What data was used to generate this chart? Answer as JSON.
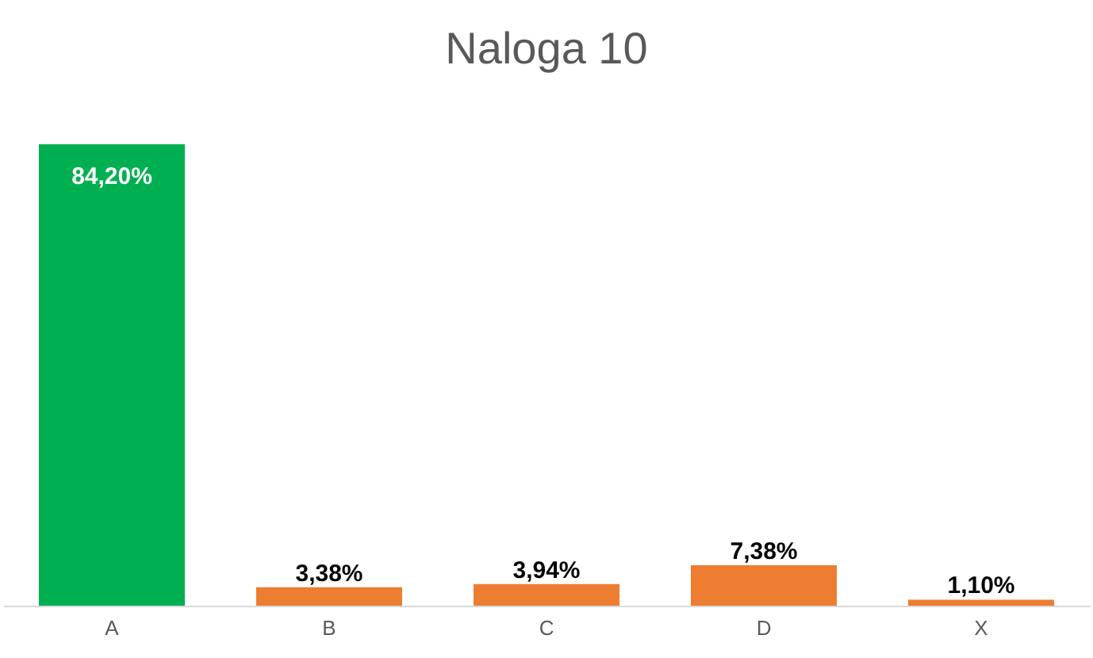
{
  "chart_data": {
    "type": "bar",
    "title": "Naloga 10",
    "categories": [
      "A",
      "B",
      "C",
      "D",
      "X"
    ],
    "values": [
      84.2,
      3.38,
      3.94,
      7.38,
      1.1
    ],
    "colors": [
      "#00b050",
      "#ed7d31",
      "#ed7d31",
      "#ed7d31",
      "#ed7d31"
    ],
    "value_labels": [
      "84,20%",
      "3,38%",
      "3,94%",
      "7,38%",
      "1,10%"
    ]
  }
}
